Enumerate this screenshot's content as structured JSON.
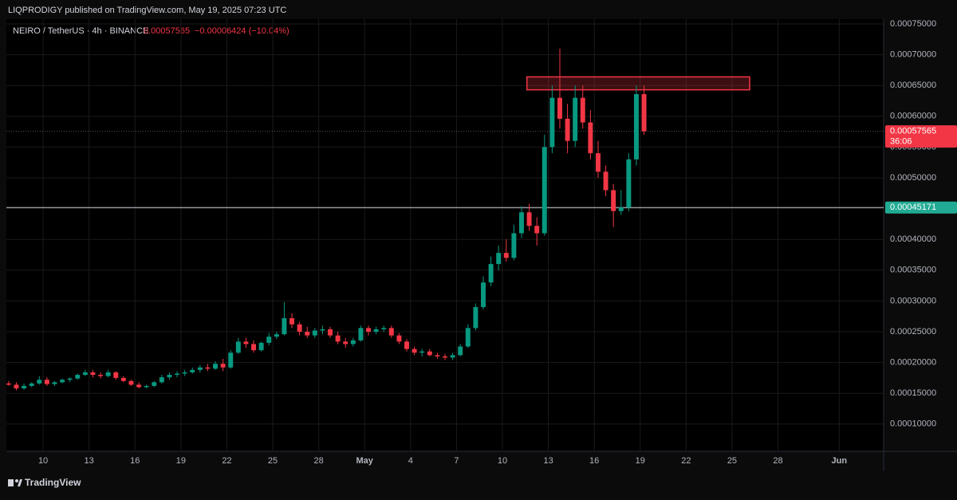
{
  "chart_data": {
    "type": "candlestick",
    "header": "LIQPRODIGY published on TradingView.com, May 19, 2025 07:23 UTC",
    "symbol": "NEIRO / TetherUS · 4h · BINANCE",
    "last": 0.00057565,
    "change": "−0.00006424 (−10.04%)",
    "brand": "TradingView",
    "up_color": "#089981",
    "down_color": "#f23645",
    "grid": true,
    "x": [
      7.75,
      8.25,
      8.75,
      9.25,
      9.75,
      10.25,
      10.75,
      11.25,
      11.75,
      12.25,
      12.75,
      13.25,
      13.75,
      14.25,
      14.75,
      15.25,
      15.75,
      16.25,
      16.75,
      17.25,
      17.75,
      18.25,
      18.75,
      19.25,
      19.75,
      20.25,
      20.75,
      21.25,
      21.75,
      22.25,
      22.75,
      23.25,
      23.75,
      24.25,
      24.75,
      25.25,
      25.75,
      26.25,
      26.75,
      27.25,
      27.75,
      28.25,
      28.75,
      29.25,
      29.75,
      30.25,
      30.75,
      31.25,
      31.75,
      32.25,
      32.75,
      33.25,
      33.75,
      34.25,
      34.75,
      35.25,
      35.75,
      36.25,
      36.75,
      37.25,
      37.75,
      38.25,
      38.75,
      39.25,
      39.75,
      40.25,
      40.75,
      41.25,
      41.75,
      42.25,
      42.75,
      43.25,
      43.75,
      44.25,
      44.75,
      45.25,
      45.75,
      46.25,
      46.75,
      47.25,
      47.75,
      48.25,
      48.75,
      49.25
    ],
    "open": [
      0.000166,
      0.000164,
      0.000158,
      0.000162,
      0.000166,
      0.000172,
      0.000165,
      0.000168,
      0.000172,
      0.000174,
      0.00018,
      0.000184,
      0.00018,
      0.000178,
      0.000184,
      0.000175,
      0.00017,
      0.000164,
      0.00016,
      0.000162,
      0.000168,
      0.000176,
      0.00018,
      0.000182,
      0.000184,
      0.000188,
      0.000192,
      0.00019,
      0.000198,
      0.000192,
      0.000216,
      0.000234,
      0.00023,
      0.00022,
      0.000232,
      0.000242,
      0.000246,
      0.000272,
      0.000262,
      0.00025,
      0.000244,
      0.000252,
      0.000254,
      0.000244,
      0.000234,
      0.00023,
      0.000236,
      0.000256,
      0.00025,
      0.000254,
      0.000256,
      0.000244,
      0.000234,
      0.000222,
      0.000216,
      0.000218,
      0.000212,
      0.00021,
      0.000208,
      0.000212,
      0.000226,
      0.000256,
      0.00029,
      0.00033,
      0.00036,
      0.000378,
      0.00037,
      0.00041,
      0.000444,
      0.000422,
      0.00041,
      0.00055,
      0.00063,
      0.000596,
      0.00056,
      0.00063,
      0.00059,
      0.00054,
      0.00051,
      0.00048,
      0.000446,
      0.000452,
      0.00053,
      0.000636
    ],
    "high": [
      0.00017,
      0.000168,
      0.000166,
      0.000168,
      0.000178,
      0.000176,
      0.00017,
      0.000174,
      0.000176,
      0.000182,
      0.000188,
      0.000188,
      0.000184,
      0.000188,
      0.000186,
      0.000178,
      0.000172,
      0.000168,
      0.000164,
      0.00017,
      0.00018,
      0.000184,
      0.000186,
      0.000188,
      0.000192,
      0.000196,
      0.000198,
      0.000202,
      0.000206,
      0.00022,
      0.00024,
      0.00024,
      0.000236,
      0.000234,
      0.000248,
      0.00025,
      0.000298,
      0.00028,
      0.000266,
      0.000258,
      0.000256,
      0.00026,
      0.000258,
      0.00025,
      0.00024,
      0.00024,
      0.00026,
      0.00026,
      0.000258,
      0.00026,
      0.00026,
      0.000248,
      0.000238,
      0.000226,
      0.000222,
      0.000222,
      0.000216,
      0.000214,
      0.000216,
      0.00023,
      0.000262,
      0.000296,
      0.00034,
      0.000372,
      0.00039,
      0.0004,
      0.000424,
      0.000454,
      0.000458,
      0.000436,
      0.00057,
      0.00065,
      0.00071,
      0.00062,
      0.00065,
      0.00065,
      0.00061,
      0.00056,
      0.00052,
      0.00049,
      0.00048,
      0.00054,
      0.00065,
      0.00065
    ],
    "low": [
      0.000162,
      0.000155,
      0.000156,
      0.00016,
      0.000164,
      0.000162,
      0.000162,
      0.000166,
      0.000168,
      0.000172,
      0.000178,
      0.000176,
      0.000174,
      0.000176,
      0.000172,
      0.000168,
      0.000162,
      0.000158,
      0.000158,
      0.00016,
      0.000166,
      0.000172,
      0.000176,
      0.000178,
      0.000182,
      0.000184,
      0.000186,
      0.000188,
      0.000186,
      0.00019,
      0.000214,
      0.000224,
      0.000216,
      0.000218,
      0.000228,
      0.000238,
      0.000244,
      0.000256,
      0.000244,
      0.00024,
      0.00024,
      0.000246,
      0.00024,
      0.00023,
      0.000224,
      0.000226,
      0.000234,
      0.000244,
      0.000246,
      0.00025,
      0.00024,
      0.00023,
      0.000218,
      0.000212,
      0.00021,
      0.00021,
      0.000206,
      0.000204,
      0.000204,
      0.00021,
      0.000224,
      0.000252,
      0.000286,
      0.000324,
      0.00035,
      0.000364,
      0.000366,
      0.000402,
      0.000414,
      0.00039,
      0.000406,
      0.00054,
      0.00058,
      0.00054,
      0.00055,
      0.00058,
      0.00053,
      0.0005,
      0.00047,
      0.00042,
      0.00044,
      0.000446,
      0.00052,
      0.00057
    ],
    "close": [
      0.000164,
      0.000158,
      0.000162,
      0.000166,
      0.000172,
      0.000165,
      0.000168,
      0.000172,
      0.000174,
      0.00018,
      0.000184,
      0.00018,
      0.000178,
      0.000184,
      0.000175,
      0.00017,
      0.000164,
      0.00016,
      0.000162,
      0.000168,
      0.000176,
      0.00018,
      0.000182,
      0.000184,
      0.000188,
      0.000192,
      0.00019,
      0.000198,
      0.000192,
      0.000216,
      0.000234,
      0.00023,
      0.00022,
      0.000232,
      0.000242,
      0.000246,
      0.000272,
      0.000262,
      0.00025,
      0.000244,
      0.000252,
      0.000254,
      0.000244,
      0.000234,
      0.00023,
      0.000236,
      0.000256,
      0.00025,
      0.000254,
      0.000256,
      0.000244,
      0.000234,
      0.000222,
      0.000216,
      0.000218,
      0.000212,
      0.00021,
      0.000208,
      0.000212,
      0.000226,
      0.000256,
      0.00029,
      0.00033,
      0.00036,
      0.000378,
      0.00037,
      0.00041,
      0.000444,
      0.000422,
      0.00041,
      0.00055,
      0.00063,
      0.000596,
      0.00056,
      0.00063,
      0.00059,
      0.00054,
      0.00051,
      0.00048,
      0.000446,
      0.000452,
      0.00053,
      0.000636,
      0.00057565
    ],
    "xlim": [
      7.6,
      64.9
    ],
    "xticks": [
      {
        "value": 10,
        "label": "10"
      },
      {
        "value": 13,
        "label": "13"
      },
      {
        "value": 16,
        "label": "16"
      },
      {
        "value": 19,
        "label": "19"
      },
      {
        "value": 22,
        "label": "22"
      },
      {
        "value": 25,
        "label": "25"
      },
      {
        "value": 28,
        "label": "28"
      },
      {
        "value": 31,
        "label": "May"
      },
      {
        "value": 34,
        "label": "4"
      },
      {
        "value": 37,
        "label": "7"
      },
      {
        "value": 40,
        "label": "10"
      },
      {
        "value": 43,
        "label": "13"
      },
      {
        "value": 46,
        "label": "16"
      },
      {
        "value": 49,
        "label": "19"
      },
      {
        "value": 52,
        "label": "22"
      },
      {
        "value": 55,
        "label": "25"
      },
      {
        "value": 58,
        "label": "28"
      },
      {
        "value": 62,
        "label": "Jun"
      }
    ],
    "ylim": [
      5.57e-05,
      0.0007578
    ],
    "yticks": [
      {
        "value": 0.0001,
        "label": "0.00010000"
      },
      {
        "value": 0.00015,
        "label": "0.00015000"
      },
      {
        "value": 0.0002,
        "label": "0.00020000"
      },
      {
        "value": 0.00025,
        "label": "0.00025000"
      },
      {
        "value": 0.0003,
        "label": "0.00030000"
      },
      {
        "value": 0.00035,
        "label": "0.00035000"
      },
      {
        "value": 0.0004,
        "label": "0.00040000"
      },
      {
        "value": 0.00045,
        "label": "0.00045000"
      },
      {
        "value": 0.0005,
        "label": "0.00050000"
      },
      {
        "value": 0.00055,
        "label": "0.00055000"
      },
      {
        "value": 0.0006,
        "label": "0.00060000"
      },
      {
        "value": 0.00065,
        "label": "0.00065000"
      },
      {
        "value": 0.0007,
        "label": "0.00070000"
      },
      {
        "value": 0.00075,
        "label": "0.00075000"
      }
    ],
    "rectangle": {
      "x": [
        41.6,
        56.15
      ],
      "y": [
        0.000643,
        0.000664
      ],
      "color": "#f23645"
    },
    "price_lines": [
      {
        "value": 0.00045171,
        "color": "#22ab94"
      },
      {
        "value": 0.00057565,
        "countdown": "36:06",
        "color": "#f23645"
      }
    ]
  }
}
